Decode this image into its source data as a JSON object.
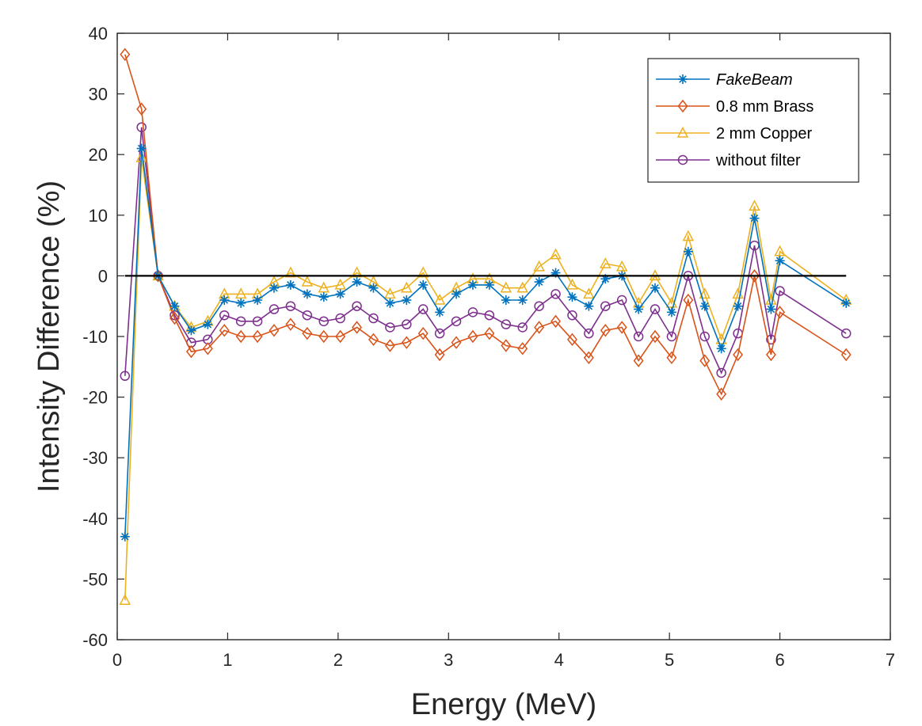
{
  "chart_data": {
    "type": "line",
    "title": "",
    "xlabel": "Energy (MeV)",
    "ylabel": "Intensity Difference (%)",
    "xlim": [
      0,
      7
    ],
    "ylim": [
      -60,
      40
    ],
    "xticks": [
      "0",
      "1",
      "2",
      "3",
      "4",
      "5",
      "6",
      "7"
    ],
    "yticks": [
      "-60",
      "-50",
      "-40",
      "-30",
      "-20",
      "-10",
      "0",
      "10",
      "20",
      "30",
      "40"
    ],
    "grid": false,
    "legend_position": "top-right",
    "reference_line_y": 0,
    "x": [
      0.07,
      0.22,
      0.37,
      0.52,
      0.67,
      0.82,
      0.97,
      1.12,
      1.27,
      1.42,
      1.57,
      1.72,
      1.87,
      2.02,
      2.17,
      2.32,
      2.47,
      2.62,
      2.77,
      2.92,
      3.07,
      3.22,
      3.37,
      3.52,
      3.67,
      3.82,
      3.97,
      4.12,
      4.27,
      4.42,
      4.57,
      4.72,
      4.87,
      5.02,
      5.17,
      5.32,
      5.47,
      5.62,
      5.77,
      5.92,
      6.0,
      6.6
    ],
    "series": [
      {
        "name": "FakeBeam",
        "italic": true,
        "color": "#0072BD",
        "marker": "star",
        "values": [
          -43,
          21,
          0,
          -5,
          -9,
          -8,
          -4,
          -4.5,
          -4,
          -2,
          -1.5,
          -3,
          -3.5,
          -3,
          -1,
          -2,
          -4.5,
          -4,
          -1.5,
          -6,
          -3,
          -1.5,
          -1.5,
          -4,
          -4,
          -1,
          0.5,
          -3.5,
          -5,
          -0.5,
          0,
          -5.5,
          -2,
          -6,
          4,
          -5,
          -12,
          -5,
          9.5,
          -5.5,
          2.5,
          -4.5
        ]
      },
      {
        "name": "0.8 mm Brass",
        "italic": false,
        "color": "#D95319",
        "marker": "diamond",
        "values": [
          36.5,
          27.5,
          0,
          -7,
          -12.5,
          -12,
          -9,
          -10,
          -10,
          -9,
          -8,
          -9.5,
          -10,
          -10,
          -8.5,
          -10.5,
          -11.5,
          -11,
          -9.5,
          -13,
          -11,
          -10,
          -9.5,
          -11.5,
          -12,
          -8.5,
          -7.5,
          -10.5,
          -13.5,
          -9,
          -8.5,
          -14,
          -10,
          -13.5,
          -4,
          -14,
          -19.5,
          -13,
          0,
          -13,
          -6,
          -13
        ]
      },
      {
        "name": "2 mm Copper",
        "italic": false,
        "color": "#EDB120",
        "marker": "triangle",
        "values": [
          -53.5,
          19.5,
          0,
          -5,
          -8.5,
          -7.5,
          -3,
          -3,
          -3,
          -1,
          0.5,
          -1,
          -2,
          -1.5,
          0.5,
          -1,
          -3,
          -2,
          0.5,
          -4,
          -2,
          -0.5,
          -0.5,
          -2,
          -2,
          1.5,
          3.5,
          -1.5,
          -3,
          2,
          1.5,
          -4.5,
          0,
          -4.5,
          6.5,
          -3,
          -10.5,
          -3,
          11.5,
          -4,
          4,
          -4
        ]
      },
      {
        "name": "without filter",
        "italic": false,
        "color": "#7E2F8E",
        "marker": "circle",
        "values": [
          -16.5,
          24.5,
          0,
          -6.5,
          -11,
          -10.5,
          -6.5,
          -7.5,
          -7.5,
          -5.5,
          -5,
          -6.5,
          -7.5,
          -7,
          -5,
          -7,
          -8.5,
          -8,
          -5.5,
          -9.5,
          -7.5,
          -6,
          -6.5,
          -8,
          -8.5,
          -5,
          -3,
          -6.5,
          -9.5,
          -5,
          -4,
          -10,
          -5.5,
          -10,
          0,
          -10,
          -16,
          -9.5,
          5,
          -10.5,
          -2.5,
          -9.5
        ]
      }
    ]
  }
}
